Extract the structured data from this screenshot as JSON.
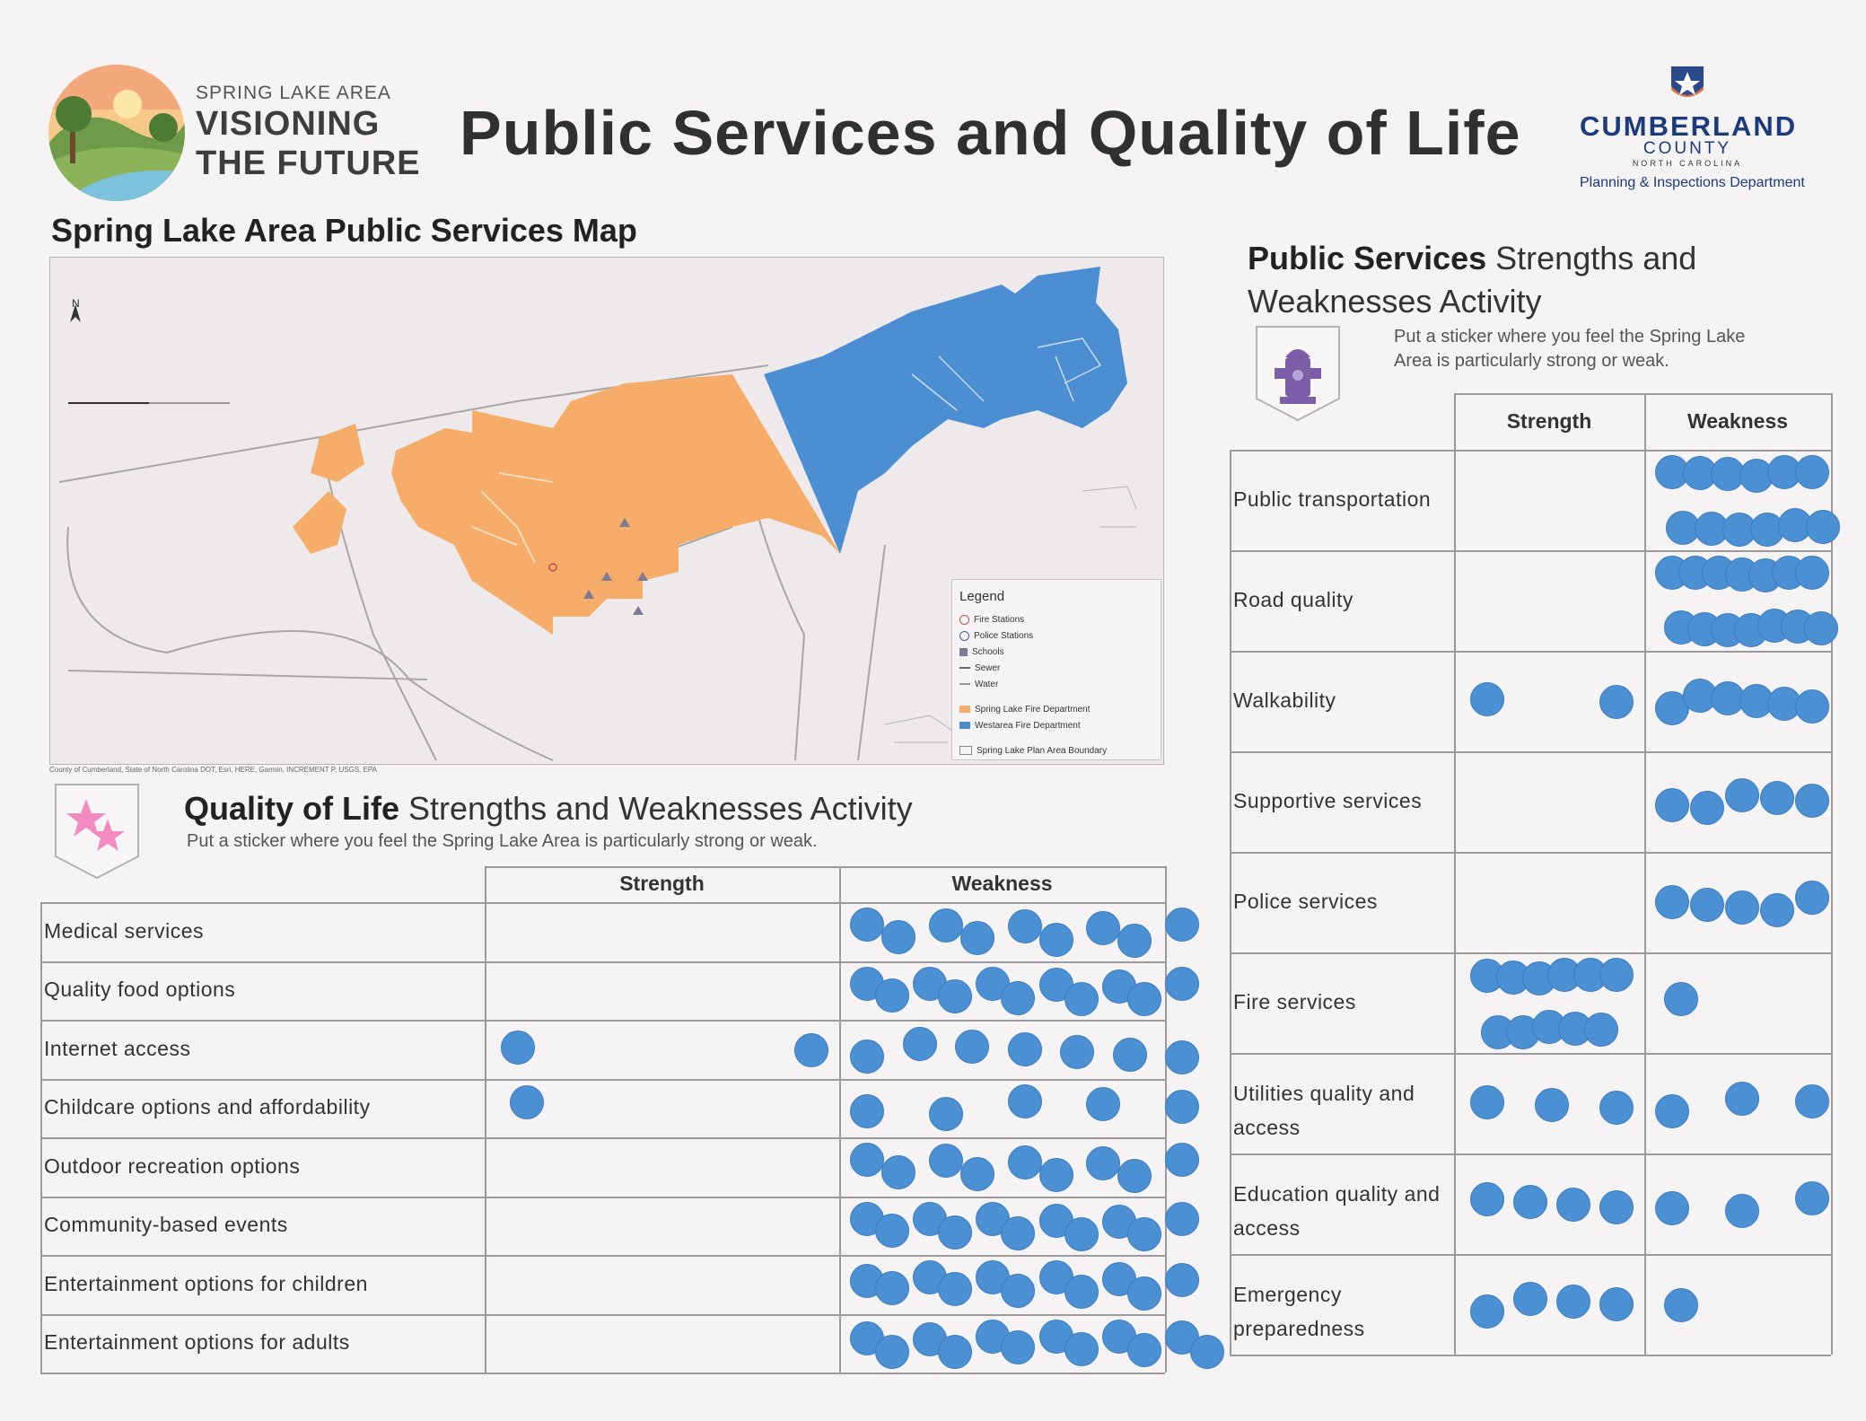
{
  "header": {
    "brand_kicker": "SPRING LAKE AREA",
    "brand_line1": "VISIONING",
    "brand_line2": "THE FUTURE",
    "title": "Public Services and Quality of Life",
    "county_name": "CUMBERLAND",
    "county_word": "COUNTY",
    "county_state": "NORTH CAROLINA",
    "county_dept": "Planning & Inspections Department"
  },
  "map": {
    "title": "Spring Lake Area Public Services Map",
    "north_label": "N",
    "credit": "County of Cumberland, State of North Carolina DOT, Esri, HERE, Garmin, INCREMENT P, USGS, EPA",
    "legend": {
      "title": "Legend",
      "items": [
        "Fire Stations",
        "Police Stations",
        "Schools",
        "Sewer",
        "Water"
      ],
      "areas": [
        "Spring Lake Fire Department",
        "Westarea Fire Department",
        "Spring Lake Plan Area Boundary"
      ]
    },
    "colors": {
      "spring_lake_fd": "#f7ad6a",
      "westarea_fd": "#4c8ed2"
    }
  },
  "quality_of_life": {
    "heading_bold": "Quality of Life",
    "heading_rest": " Strengths and Weaknesses Activity",
    "instruction": "Put a sticker where you feel the Spring Lake Area is particularly strong or weak.",
    "col_strength": "Strength",
    "col_weakness": "Weakness",
    "rows": [
      {
        "label": "Medical services",
        "strength": 0,
        "weakness": 9
      },
      {
        "label": "Quality food options",
        "strength": 0,
        "weakness": 11
      },
      {
        "label": "Internet access",
        "strength": 2,
        "weakness": 7
      },
      {
        "label": "Childcare options and affordability",
        "strength": 1,
        "weakness": 5
      },
      {
        "label": "Outdoor recreation options",
        "strength": 0,
        "weakness": 9
      },
      {
        "label": "Community-based events",
        "strength": 0,
        "weakness": 11
      },
      {
        "label": "Entertainment options for children",
        "strength": 0,
        "weakness": 11
      },
      {
        "label": "Entertainment options for adults",
        "strength": 0,
        "weakness": 12
      }
    ]
  },
  "public_services": {
    "heading_bold": "Public Services",
    "heading_rest": " Strengths and",
    "heading_line2": "Weaknesses Activity",
    "instruction_line1": "Put a sticker where you feel the Spring Lake",
    "instruction_line2": "Area is particularly strong or weak.",
    "col_strength": "Strength",
    "col_weakness": "Weakness",
    "rows": [
      {
        "label": "Public transportation",
        "strength": 0,
        "weakness": 12
      },
      {
        "label": "Road quality",
        "strength": 0,
        "weakness": 14
      },
      {
        "label": "Walkability",
        "strength": 2,
        "weakness": 6
      },
      {
        "label": "Supportive services",
        "strength": 0,
        "weakness": 5
      },
      {
        "label": "Police services",
        "strength": 0,
        "weakness": 5
      },
      {
        "label": "Fire services",
        "strength": 11,
        "weakness": 1
      },
      {
        "label": "Utilities quality and",
        "label2": "access",
        "strength": 3,
        "weakness": 3
      },
      {
        "label": "Education quality and",
        "label2": "access",
        "strength": 4,
        "weakness": 3
      },
      {
        "label": "Emergency",
        "label2": "preparedness",
        "strength": 4,
        "weakness": 1
      }
    ]
  },
  "sticker_color": "#4a90d2"
}
